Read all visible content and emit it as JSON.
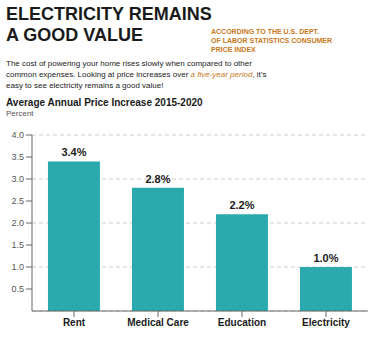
{
  "chart_data": {
    "type": "bar",
    "heading": [
      "ELECTRICITY REMAINS",
      "A GOOD VALUE"
    ],
    "source": {
      "text": "ACCORDING TO THE U.S. DEPT.\nOF LABOR STATISTICS CONSUMER\nPRICE INDEX",
      "color": "#C8781A"
    },
    "body": [
      [
        {
          "text": "The cost of powering your home rises slowly when compared to other"
        }
      ],
      [
        {
          "text": "common expenses. Looking at price increases over "
        },
        {
          "text": "a five-year period",
          "color": "#C8781A"
        },
        {
          "text": ", it’s"
        }
      ],
      [
        {
          "text": "easy to see electricity remains a good value!"
        }
      ]
    ],
    "title": "Average Annual Price Increase 2015-2020",
    "ylabel": "Percent",
    "categories": [
      "Rent",
      "Medical Care",
      "Education",
      "Electricity"
    ],
    "values": [
      3.4,
      2.8,
      2.2,
      1.0
    ],
    "value_labels": [
      "3.4%",
      "2.8%",
      "2.2%",
      "1.0%"
    ],
    "data_labels": true,
    "color": "#2BAAAD",
    "ylim": [
      0,
      4.0
    ],
    "yticks": [
      0.5,
      {
        "value": 1.0,
        "label": "1.0"
      },
      1.5,
      {
        "value": 2.0,
        "label": "2.0"
      },
      2.5,
      {
        "value": 3.0,
        "label": "3.0"
      },
      3.5,
      {
        "value": 4.0,
        "label": "4.0"
      }
    ],
    "grid": true
  }
}
